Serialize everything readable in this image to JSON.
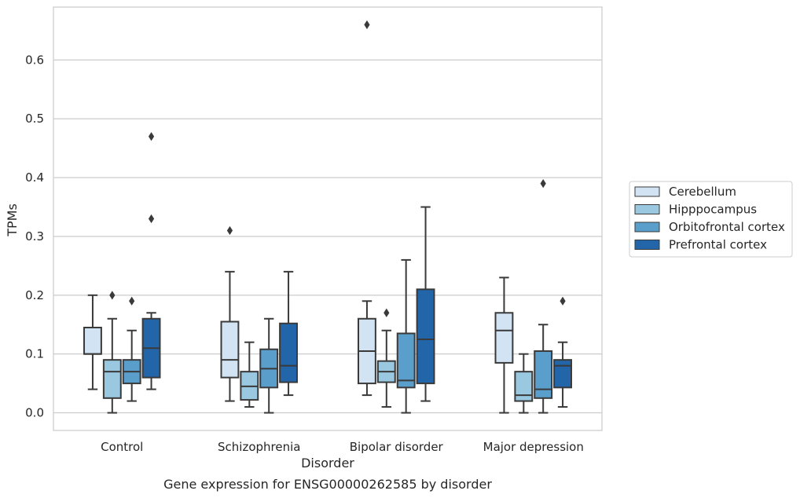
{
  "chart_data": {
    "type": "box",
    "caption": "Gene expression for ENSG00000262585 by disorder",
    "xlabel": "Disorder",
    "ylabel": "TPMs",
    "ylim": [
      -0.03,
      0.69
    ],
    "yticks": [
      "0.0",
      "0.1",
      "0.2",
      "0.3",
      "0.4",
      "0.5",
      "0.6"
    ],
    "grid": true,
    "legend_position": "right",
    "categories": [
      "Control",
      "Schizophrenia",
      "Bipolar disorder",
      "Major depression"
    ],
    "series": [
      {
        "name": "Cerebellum",
        "color": "#d2e3f3",
        "boxes": [
          {
            "whislo": 0.04,
            "q1": 0.1,
            "median": 0.1,
            "q3": 0.145,
            "whishi": 0.2,
            "fliers": []
          },
          {
            "whislo": 0.02,
            "q1": 0.06,
            "median": 0.09,
            "q3": 0.155,
            "whishi": 0.24,
            "fliers": [
              0.31
            ]
          },
          {
            "whislo": 0.03,
            "q1": 0.05,
            "median": 0.105,
            "q3": 0.16,
            "whishi": 0.19,
            "fliers": [
              0.66
            ]
          },
          {
            "whislo": 0.0,
            "q1": 0.085,
            "median": 0.14,
            "q3": 0.17,
            "whishi": 0.23,
            "fliers": []
          }
        ]
      },
      {
        "name": "Hipppocampus",
        "color": "#9ac8e0",
        "boxes": [
          {
            "whislo": 0.0,
            "q1": 0.025,
            "median": 0.07,
            "q3": 0.09,
            "whishi": 0.16,
            "fliers": [
              0.2
            ]
          },
          {
            "whislo": 0.01,
            "q1": 0.022,
            "median": 0.045,
            "q3": 0.07,
            "whishi": 0.12,
            "fliers": []
          },
          {
            "whislo": 0.01,
            "q1": 0.052,
            "median": 0.07,
            "q3": 0.088,
            "whishi": 0.14,
            "fliers": [
              0.17
            ]
          },
          {
            "whislo": 0.0,
            "q1": 0.02,
            "median": 0.03,
            "q3": 0.07,
            "whishi": 0.1,
            "fliers": []
          }
        ]
      },
      {
        "name": "Orbitofrontal cortex",
        "color": "#5a9ecc",
        "boxes": [
          {
            "whislo": 0.02,
            "q1": 0.05,
            "median": 0.07,
            "q3": 0.09,
            "whishi": 0.14,
            "fliers": [
              0.19
            ]
          },
          {
            "whislo": 0.0,
            "q1": 0.043,
            "median": 0.075,
            "q3": 0.108,
            "whishi": 0.16,
            "fliers": []
          },
          {
            "whislo": 0.0,
            "q1": 0.043,
            "median": 0.055,
            "q3": 0.135,
            "whishi": 0.26,
            "fliers": []
          },
          {
            "whislo": 0.0,
            "q1": 0.025,
            "median": 0.04,
            "q3": 0.105,
            "whishi": 0.15,
            "fliers": [
              0.39
            ]
          }
        ]
      },
      {
        "name": "Prefrontal cortex",
        "color": "#2265a9",
        "boxes": [
          {
            "whislo": 0.04,
            "q1": 0.06,
            "median": 0.11,
            "q3": 0.16,
            "whishi": 0.17,
            "fliers": [
              0.33,
              0.47
            ]
          },
          {
            "whislo": 0.03,
            "q1": 0.052,
            "median": 0.08,
            "q3": 0.152,
            "whishi": 0.24,
            "fliers": []
          },
          {
            "whislo": 0.02,
            "q1": 0.05,
            "median": 0.125,
            "q3": 0.21,
            "whishi": 0.35,
            "fliers": []
          },
          {
            "whislo": 0.01,
            "q1": 0.043,
            "median": 0.08,
            "q3": 0.09,
            "whishi": 0.12,
            "fliers": [
              0.19
            ]
          }
        ]
      }
    ]
  }
}
